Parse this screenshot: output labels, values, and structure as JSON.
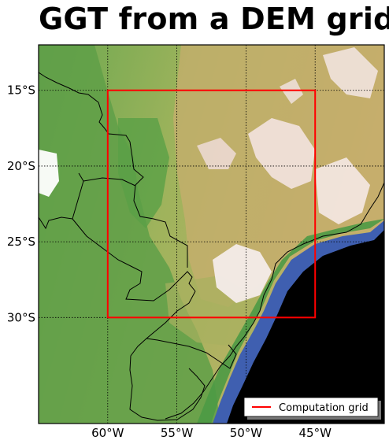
{
  "title": "GGT from a DEM grid",
  "map": {
    "lon_range": [
      -65,
      -40
    ],
    "lat_range": [
      -12,
      -37
    ],
    "grid_style": "dotted",
    "colormap": "terrain",
    "ocean_color": "#000000",
    "lowland_color": "#5a9e48",
    "upland_color": "#c9b26a",
    "highland_color": "#ffffff",
    "x_ticks": [
      {
        "lon": -60,
        "label": "60°W"
      },
      {
        "lon": -55,
        "label": "55°W"
      },
      {
        "lon": -50,
        "label": "50°W"
      },
      {
        "lon": -45,
        "label": "45°W"
      }
    ],
    "y_ticks": [
      {
        "lat": -15,
        "label": "15°S"
      },
      {
        "lat": -20,
        "label": "20°S"
      },
      {
        "lat": -25,
        "label": "25°S"
      },
      {
        "lat": -30,
        "label": "30°S"
      }
    ],
    "computation_grid": {
      "lon": [
        -60,
        -45
      ],
      "lat": [
        -15,
        -30
      ],
      "color": "#ff0000"
    },
    "legend": {
      "label": "Computation grid",
      "position": "lower-right",
      "color": "#ff0000"
    }
  }
}
